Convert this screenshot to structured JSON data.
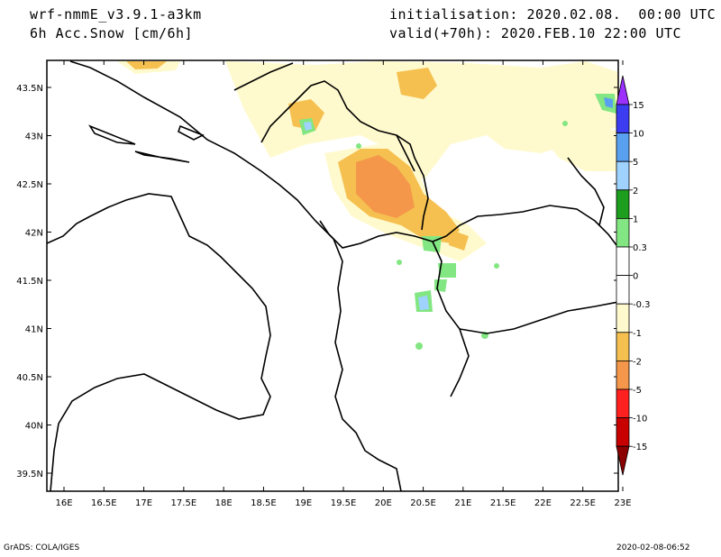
{
  "header": {
    "model": "wrf-nmmE_v3.9.1-a3km",
    "field": "6h Acc.Snow [cm/6h]",
    "init": "initialisation: 2020.02.08.  00:00 UTC",
    "valid": "valid(+70h): 2020.FEB.10 22:00 UTC"
  },
  "footer": {
    "left": "GrADS: COLA/IGES",
    "right": "2020-02-08-06:52"
  },
  "map": {
    "x_ticks": [
      "16E",
      "16.5E",
      "17E",
      "17.5E",
      "18E",
      "18.5E",
      "19E",
      "19.5E",
      "20E",
      "20.5E",
      "21E",
      "21.5E",
      "22E",
      "22.5E",
      "23E"
    ],
    "y_ticks": [
      "43.5N",
      "43N",
      "42.5N",
      "42N",
      "41.5N",
      "41N",
      "40.5N",
      "40N",
      "39.5N"
    ]
  },
  "colorbar": {
    "labels": [
      "15",
      "10",
      "5",
      "2",
      "1",
      "0.3",
      "0",
      "-0.3",
      "-1",
      "-2",
      "-5",
      "-10",
      "-15"
    ],
    "colors": [
      "#9b30ff",
      "#3c3cf0",
      "#5aa0f0",
      "#a0d2ff",
      "#1e9e1e",
      "#82e682",
      "#ffffff",
      "#ffffff",
      "#fffacd",
      "#f5c050",
      "#f4974a",
      "#ff2020",
      "#c80000",
      "#8b0000"
    ]
  }
}
